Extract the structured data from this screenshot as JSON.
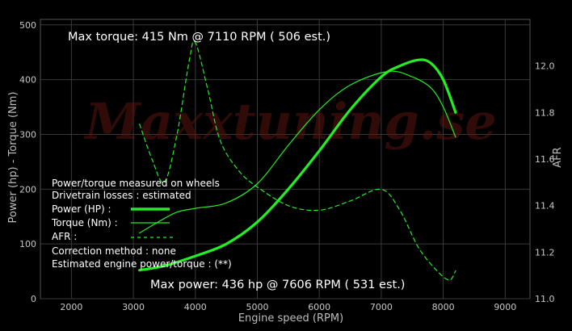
{
  "watermark": "Maxxtuning.se",
  "annotations": {
    "max_torque": "Max torque:  415 Nm @  7110 RPM ( 506 est.)",
    "max_power": "Max power:   436 hp @  7606 RPM ( 531 est.)"
  },
  "legend": {
    "line1": "Power/torque measured on wheels",
    "line2": "Drivetrain losses : estimated",
    "power": "Power (HP)     :",
    "torque": "Torque (Nm) :",
    "afr": "AFR              :",
    "correction": "Correction method : none",
    "estimated": "Estimated engine power/torque : (**)"
  },
  "colors": {
    "series": "#22ee22",
    "background": "#000000",
    "grid": "#3a3a3a"
  },
  "chart_data": {
    "type": "line",
    "xlabel": "Engine speed (RPM)",
    "ylabel": "Power (hp)  - Torque (Nm)",
    "y2label": "AFR",
    "xlim": [
      1500,
      9400
    ],
    "ylim": [
      0,
      510
    ],
    "y2lim": [
      11.0,
      12.2
    ],
    "xticks": [
      2000,
      3000,
      4000,
      5000,
      6000,
      7000,
      8000,
      9000
    ],
    "yticks": [
      0,
      100,
      200,
      300,
      400,
      500
    ],
    "y2ticks": [
      11.0,
      11.2,
      11.4,
      11.6,
      11.8,
      12.0
    ],
    "grid": true,
    "series": [
      {
        "name": "Power (HP)",
        "axis": "left",
        "style": "thick",
        "x": [
          3100,
          3500,
          4000,
          4500,
          5000,
          5500,
          6000,
          6500,
          7000,
          7300,
          7606,
          7800,
          8000,
          8200
        ],
        "y": [
          52,
          60,
          78,
          100,
          140,
          200,
          270,
          345,
          405,
          425,
          436,
          430,
          400,
          340
        ]
      },
      {
        "name": "Torque (Nm)",
        "axis": "left",
        "style": "thin",
        "x": [
          3100,
          3400,
          3700,
          4000,
          4500,
          5000,
          5500,
          6000,
          6500,
          7110,
          7500,
          7800,
          8000,
          8200
        ],
        "y": [
          120,
          140,
          158,
          165,
          175,
          210,
          280,
          345,
          390,
          415,
          405,
          385,
          350,
          295
        ]
      },
      {
        "name": "AFR",
        "axis": "right",
        "style": "dashed",
        "x": [
          3100,
          3300,
          3500,
          3700,
          3900,
          4000,
          4200,
          4400,
          4700,
          5000,
          5500,
          6000,
          6500,
          7000,
          7300,
          7600,
          7900,
          8100,
          8200
        ],
        "y": [
          11.75,
          11.6,
          11.5,
          11.7,
          12.02,
          12.1,
          11.9,
          11.68,
          11.55,
          11.48,
          11.4,
          11.38,
          11.42,
          11.47,
          11.38,
          11.22,
          11.12,
          11.08,
          11.12
        ]
      }
    ]
  }
}
